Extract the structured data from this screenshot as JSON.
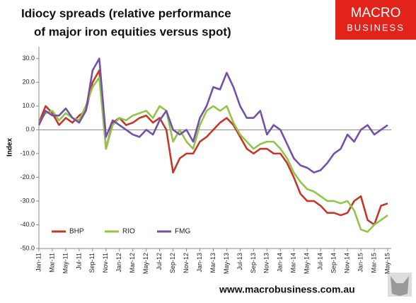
{
  "chart_data": {
    "type": "line",
    "title": [
      "Idiocy spreads (relative performance",
      "of major iron equities versus spot)"
    ],
    "logo": [
      "MACRO",
      "BUSINESS"
    ],
    "footer": "www.macrobusiness.com.au",
    "y_label": "Index",
    "categories": [
      "Jan-11",
      null,
      "Mar-11",
      null,
      "May-11",
      null,
      "Jul-11",
      null,
      "Sep-11",
      null,
      "Nov-11",
      null,
      "Jan-12",
      null,
      "Mar-12",
      null,
      "May-12",
      null,
      "Jul-12",
      null,
      "Sep-12",
      null,
      "Nov-12",
      null,
      "Jan-13",
      null,
      "Mar-13",
      null,
      "May-13",
      null,
      "Jul-13",
      null,
      "Sep-13",
      null,
      "Nov-13",
      null,
      "Jan-14",
      null,
      "Mar-14",
      null,
      "May-14",
      null,
      "Jul-14",
      null,
      "Sep-14",
      null,
      "Nov-14",
      null,
      "Jan-15",
      null,
      "Mar-15",
      null,
      "May-15"
    ],
    "series": [
      {
        "name": "BHP",
        "color": "#c0392b",
        "values": [
          3,
          10,
          7,
          2,
          5,
          3,
          6,
          8,
          20,
          25,
          -8,
          3,
          5,
          2,
          3,
          5,
          6,
          3,
          5,
          0,
          -18,
          -12,
          -10,
          -10,
          -5,
          -3,
          0,
          3,
          5,
          2,
          -3,
          -8,
          -10,
          -8,
          -8,
          -10,
          -10,
          -14,
          -20,
          -27,
          -30,
          -30,
          -32,
          -35,
          -35,
          -36,
          -35,
          -30,
          -28,
          -38,
          -40,
          -32,
          -31
        ]
      },
      {
        "name": "RIO",
        "color": "#92c44c",
        "values": [
          3,
          7,
          8,
          4,
          7,
          5,
          4,
          10,
          18,
          22,
          -8,
          2,
          5,
          4,
          6,
          7,
          8,
          5,
          10,
          8,
          -5,
          0,
          -5,
          -8,
          2,
          8,
          10,
          8,
          10,
          3,
          -2,
          -5,
          -8,
          -6,
          -5,
          -5,
          -8,
          -12,
          -18,
          -22,
          -25,
          -26,
          -28,
          -30,
          -30,
          -31,
          -30,
          -34,
          -42,
          -43,
          -40,
          -38,
          -36
        ]
      },
      {
        "name": "FMG",
        "color": "#7451a6",
        "values": [
          2,
          8,
          6,
          6,
          9,
          5,
          3,
          8,
          25,
          30,
          -3,
          4,
          2,
          0,
          -2,
          -3,
          0,
          -2,
          4,
          8,
          0,
          -2,
          0,
          -5,
          5,
          10,
          18,
          17,
          24,
          18,
          10,
          5,
          5,
          8,
          -2,
          2,
          0,
          -6,
          -12,
          -15,
          -16,
          -18,
          -17,
          -14,
          -10,
          -8,
          -2,
          -5,
          0,
          2,
          -2,
          0,
          2
        ]
      }
    ],
    "ylim": [
      -50,
      35
    ],
    "yticks": [
      {
        "value": -50,
        "label": "-50.0"
      },
      {
        "value": -40,
        "label": "-40.0"
      },
      {
        "value": -30,
        "label": "-30.0"
      },
      {
        "value": -20,
        "label": "-20.0"
      },
      {
        "value": -10,
        "label": "-10.0"
      },
      {
        "value": 0,
        "label": "0.0"
      },
      {
        "value": 10,
        "label": "10.0"
      },
      {
        "value": 20,
        "label": "20.0"
      },
      {
        "value": 30,
        "label": "30.0"
      }
    ],
    "legend": "lower left"
  }
}
